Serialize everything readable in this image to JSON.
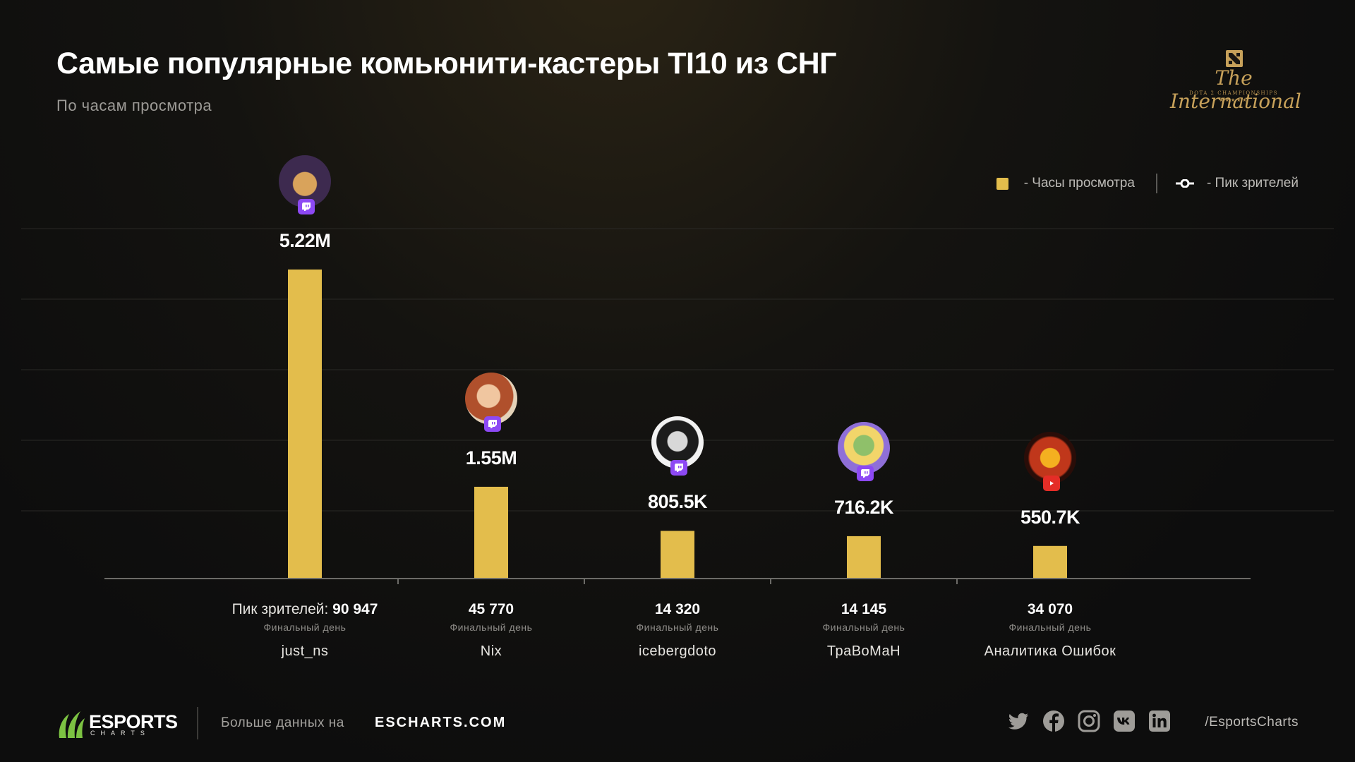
{
  "header": {
    "title": "Самые популярные комьюнити-кастеры TI10 из СНГ",
    "subtitle": "По часам просмотра"
  },
  "event_logo": {
    "text": "The International",
    "subtext": "DOTA 2 CHAMPIONSHIPS",
    "stars": "★★★★★"
  },
  "legend": {
    "hours_label": "- Часы просмотра",
    "peak_label": "-   Пик зрителей"
  },
  "peak_prefix": "Пик зрителей:",
  "final_day_label": "Финальный день",
  "chart_data": {
    "type": "bar",
    "title": "Самые популярные комьюнити-кастеры TI10 из СНГ",
    "subtitle": "По часам просмотра",
    "categories": [
      "just_ns",
      "Nix",
      "icebergdoto",
      "ТраВоМаН",
      "Аналитика Ошибок"
    ],
    "series": [
      {
        "name": "Часы просмотра",
        "values": [
          5220000,
          1550000,
          805500,
          716200,
          550700
        ],
        "labels": [
          "5.22M",
          "1.55M",
          "805.5K",
          "716.2K",
          "550.7K"
        ]
      },
      {
        "name": "Пик зрителей",
        "values": [
          90947,
          45770,
          14320,
          14145,
          34070
        ],
        "labels": [
          "90 947",
          "45 770",
          "14 320",
          "14 145",
          "34 070"
        ]
      }
    ],
    "platforms": [
      "twitch",
      "twitch",
      "twitch",
      "twitch",
      "youtube"
    ],
    "bar_color": "#e3bd4c",
    "ylim": [
      0,
      5220000
    ],
    "grid": true,
    "legend_position": "top-right"
  },
  "footer": {
    "brand": "ESPORTS",
    "brand_sub": "CHARTS",
    "more_text": "Больше данных на",
    "site": "ESCHARTS.COM",
    "socials": [
      "twitter-icon",
      "facebook-icon",
      "instagram-icon",
      "vk-icon",
      "linkedin-icon"
    ],
    "handle": "/EsportsCharts"
  }
}
